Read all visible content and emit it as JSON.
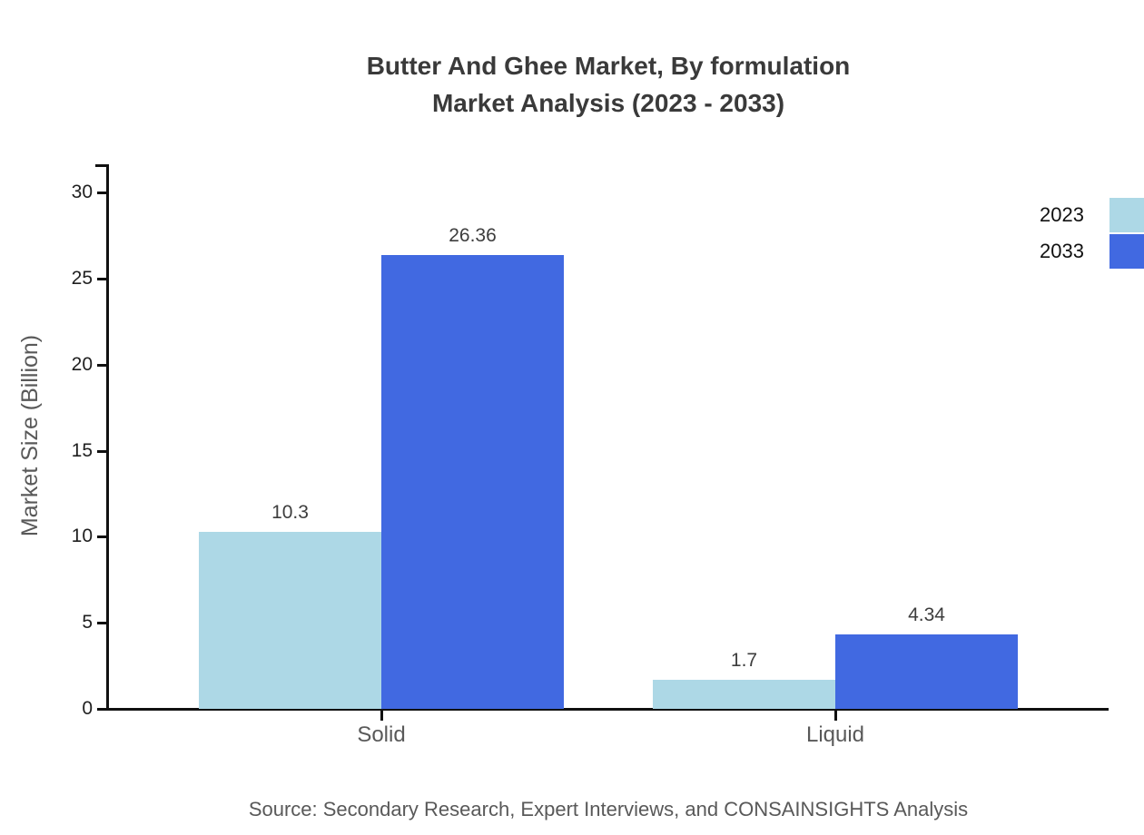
{
  "title": {
    "line1": "Butter And Ghee Market, By formulation",
    "line2": "Market Analysis (2023 - 2033)"
  },
  "source_note": "Source: Secondary Research, Expert Interviews, and CONSAINSIGHTS Analysis",
  "chart_data": {
    "type": "bar",
    "title": "Butter And Ghee Market, By formulation Market Analysis (2023 - 2033)",
    "categories": [
      "Solid",
      "Liquid"
    ],
    "series": [
      {
        "name": "2023",
        "values": [
          10.3,
          1.7
        ],
        "color": "#add8e6"
      },
      {
        "name": "2033",
        "values": [
          26.36,
          4.34
        ],
        "color": "#4169e1"
      }
    ],
    "value_labels": [
      [
        "10.3",
        "1.7"
      ],
      [
        "26.36",
        "4.34"
      ]
    ],
    "xlabel": "",
    "ylabel": "Market Size (Billion)",
    "ylim": [
      0,
      30
    ],
    "yticks": [
      0,
      5,
      10,
      15,
      20,
      25,
      30
    ],
    "grid": false,
    "legend_position": "top-right",
    "bar_value_labels_shown": true
  },
  "colors": {
    "series_2023": "#add8e6",
    "series_2033": "#4169e1",
    "axis": "#111111",
    "title_text": "#3a3a3a",
    "value_label_text": "#3d3d3d",
    "category_text": "#595959",
    "source_text": "#595959",
    "legend_text": "#111111"
  }
}
